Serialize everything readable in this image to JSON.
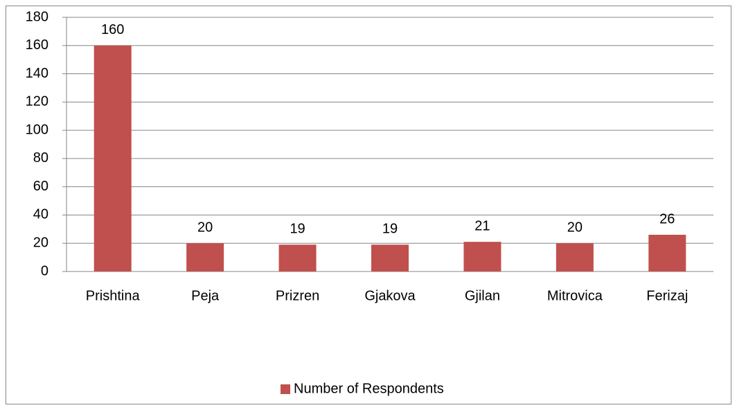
{
  "chart_data": {
    "type": "bar",
    "categories": [
      "Prishtina",
      "Peja",
      "Prizren",
      "Gjakova",
      "Gjilan",
      "Mitrovica",
      "Ferizaj"
    ],
    "series": [
      {
        "name": "Number of Respondents",
        "color": "#c0504d",
        "values": [
          160,
          20,
          19,
          19,
          21,
          20,
          26
        ]
      }
    ],
    "ylim": [
      0,
      180
    ],
    "yticks": [
      0,
      20,
      40,
      60,
      80,
      100,
      120,
      140,
      160,
      180
    ],
    "grid": true,
    "legend": "bottom"
  }
}
